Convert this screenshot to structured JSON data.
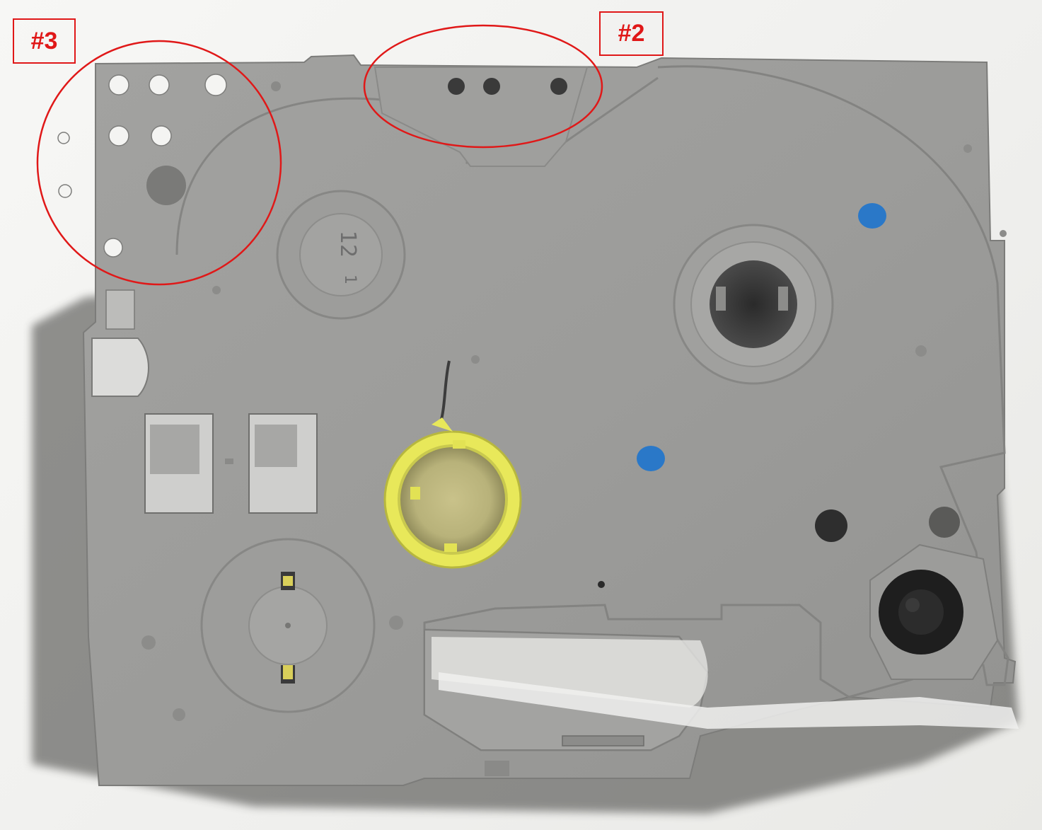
{
  "annotations": {
    "tag_3": {
      "label": "#3"
    },
    "tag_2": {
      "label": "#2"
    }
  },
  "cassette": {
    "molded_size_label": "12",
    "molded_mark_label": "1",
    "body_color": "#9a9a98",
    "spool_color": "#e8e85a",
    "highlight_color": "#e01818",
    "hole_color": "#2a78c8"
  }
}
